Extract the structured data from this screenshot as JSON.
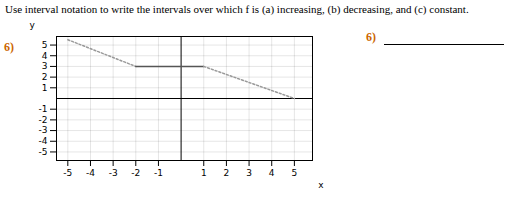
{
  "chart_data": {
    "type": "line",
    "title": "Use interval notation to write the intervals over which f is (a) increasing, (b) decreasing, and (c) constant.",
    "x": [
      -5,
      -2,
      1,
      5
    ],
    "series": [
      {
        "color": "#999999",
        "line_style": "dotted",
        "values": [
          5.5,
          3,
          null,
          null
        ]
      },
      {
        "color": "#555555",
        "line_style": "solid",
        "values": [
          null,
          3,
          3,
          null
        ]
      },
      {
        "color": "#999999",
        "line_style": "dotted",
        "values": [
          null,
          null,
          3,
          0
        ]
      }
    ],
    "xlabel": "x",
    "ylabel": "y",
    "xlim": [
      -5.5,
      5.8
    ],
    "ylim": [
      -5.8,
      5.8
    ],
    "xticks": [
      -5,
      -4,
      -3,
      -2,
      -1,
      1,
      2,
      3,
      4,
      5
    ],
    "yticks": [
      -5,
      -4,
      -3,
      -2,
      -1,
      1,
      2,
      3,
      4,
      5
    ],
    "grid": true,
    "annotations": [
      {
        "text": "6)",
        "color": "#cc6600"
      },
      {
        "text": "6)",
        "color": "#cc6600"
      }
    ]
  }
}
